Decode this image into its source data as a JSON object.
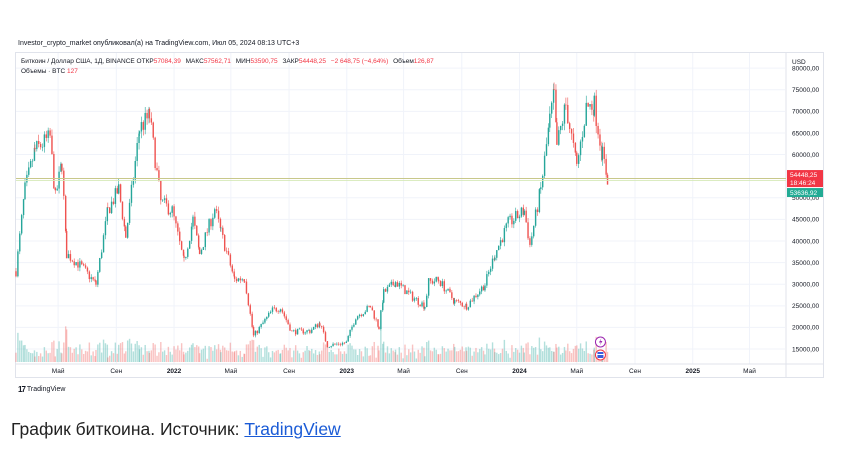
{
  "header": {
    "published": "Investor_crypto_market опубликовал(а) на TradingView.com, Июл 05, 2024 08:13 UTC+3"
  },
  "legend": {
    "symbol": "Биткоин / Доллар США, 1Д, BINANCE",
    "open_label": "ОТКР",
    "open": "57084,39",
    "high_label": "МАКС",
    "high": "57562,71",
    "low_label": "МИН",
    "low": "53590,75",
    "close_label": "ЗАКР",
    "close": "54448,25",
    "change": "−2 648,75 (−4,64%)",
    "volume_label": "Объем",
    "volume": "126,87",
    "volume_series": "Объемы · BTC",
    "volume_value": "127"
  },
  "colors": {
    "up": "#26a69a",
    "down": "#ef5350",
    "price_tag_red": "#f23645",
    "price_tag_green": "#22ab94",
    "priceline": "#c8c88a",
    "caption_link": "#1a5bd6"
  },
  "chart_data": {
    "type": "candlestick",
    "currency_label": "USD",
    "y_ticks": [
      "80000,00",
      "75000,00",
      "70000,00",
      "65000,00",
      "60000,00",
      "50000,00",
      "45000,00",
      "40000,00",
      "35000,00",
      "30000,00",
      "25000,00",
      "20000,00",
      "15000,00"
    ],
    "y_tick_values": [
      80000,
      75000,
      70000,
      65000,
      60000,
      50000,
      45000,
      40000,
      35000,
      30000,
      25000,
      20000,
      15000
    ],
    "ylim": [
      12000,
      83500
    ],
    "x_ticks": [
      "Май",
      "Сен",
      "2022",
      "Май",
      "Сен",
      "2023",
      "Май",
      "Сен",
      "2024",
      "Май",
      "Сен",
      "2025",
      "Май"
    ],
    "x_tick_dates": [
      "2021-05-01",
      "2021-09-01",
      "2022-01-01",
      "2022-05-01",
      "2022-09-01",
      "2023-01-01",
      "2023-05-01",
      "2023-09-01",
      "2024-01-01",
      "2024-05-01",
      "2024-09-01",
      "2025-01-01",
      "2025-05-01"
    ],
    "xlim": [
      "2021-02-01",
      "2025-07-15"
    ],
    "price_tags": [
      {
        "label": "54448,25",
        "value": 54448.25,
        "color": "red"
      },
      {
        "label": "18:46:24",
        "value": 54448.25,
        "color": "red"
      },
      {
        "label": "53636,92",
        "value": 53636.92,
        "color": "green"
      }
    ],
    "price_path": [
      [
        "2021-02-01",
        33000
      ],
      [
        "2021-02-20",
        52000
      ],
      [
        "2021-03-13",
        61000
      ],
      [
        "2021-04-14",
        64000
      ],
      [
        "2021-04-25",
        50000
      ],
      [
        "2021-05-09",
        58000
      ],
      [
        "2021-05-19",
        37000
      ],
      [
        "2021-06-20",
        34000
      ],
      [
        "2021-07-20",
        30000
      ],
      [
        "2021-08-14",
        47000
      ],
      [
        "2021-09-06",
        52000
      ],
      [
        "2021-09-21",
        41000
      ],
      [
        "2021-10-20",
        66000
      ],
      [
        "2021-11-10",
        68900
      ],
      [
        "2021-12-04",
        49000
      ],
      [
        "2021-12-28",
        47000
      ],
      [
        "2022-01-22",
        35000
      ],
      [
        "2022-02-10",
        45000
      ],
      [
        "2022-02-24",
        37000
      ],
      [
        "2022-03-28",
        47500
      ],
      [
        "2022-04-10",
        42000
      ],
      [
        "2022-05-09",
        31000
      ],
      [
        "2022-05-30",
        31500
      ],
      [
        "2022-06-18",
        18000
      ],
      [
        "2022-07-28",
        24000
      ],
      [
        "2022-08-14",
        24500
      ],
      [
        "2022-09-07",
        19000
      ],
      [
        "2022-10-15",
        19200
      ],
      [
        "2022-11-05",
        21000
      ],
      [
        "2022-11-21",
        15800
      ],
      [
        "2022-12-31",
        16500
      ],
      [
        "2023-01-20",
        22500
      ],
      [
        "2023-02-20",
        24800
      ],
      [
        "2023-03-10",
        20000
      ],
      [
        "2023-03-20",
        28000
      ],
      [
        "2023-04-14",
        30500
      ],
      [
        "2023-05-20",
        27000
      ],
      [
        "2023-06-15",
        25000
      ],
      [
        "2023-06-23",
        30500
      ],
      [
        "2023-07-14",
        31000
      ],
      [
        "2023-08-17",
        26000
      ],
      [
        "2023-09-11",
        25000
      ],
      [
        "2023-10-20",
        30000
      ],
      [
        "2023-11-10",
        37000
      ],
      [
        "2023-12-08",
        44000
      ],
      [
        "2024-01-11",
        47000
      ],
      [
        "2024-01-23",
        39000
      ],
      [
        "2024-02-15",
        52000
      ],
      [
        "2024-03-05",
        68000
      ],
      [
        "2024-03-14",
        73700
      ],
      [
        "2024-03-20",
        62000
      ],
      [
        "2024-04-08",
        71500
      ],
      [
        "2024-05-01",
        57000
      ],
      [
        "2024-05-21",
        71000
      ],
      [
        "2024-06-07",
        71500
      ],
      [
        "2024-06-24",
        60000
      ],
      [
        "2024-07-05",
        54448
      ]
    ]
  },
  "branding": {
    "logo_mark": "17",
    "logo_text": "TradingView"
  },
  "caption": {
    "text": "График биткоина. Источник: ",
    "link": "TradingView"
  }
}
